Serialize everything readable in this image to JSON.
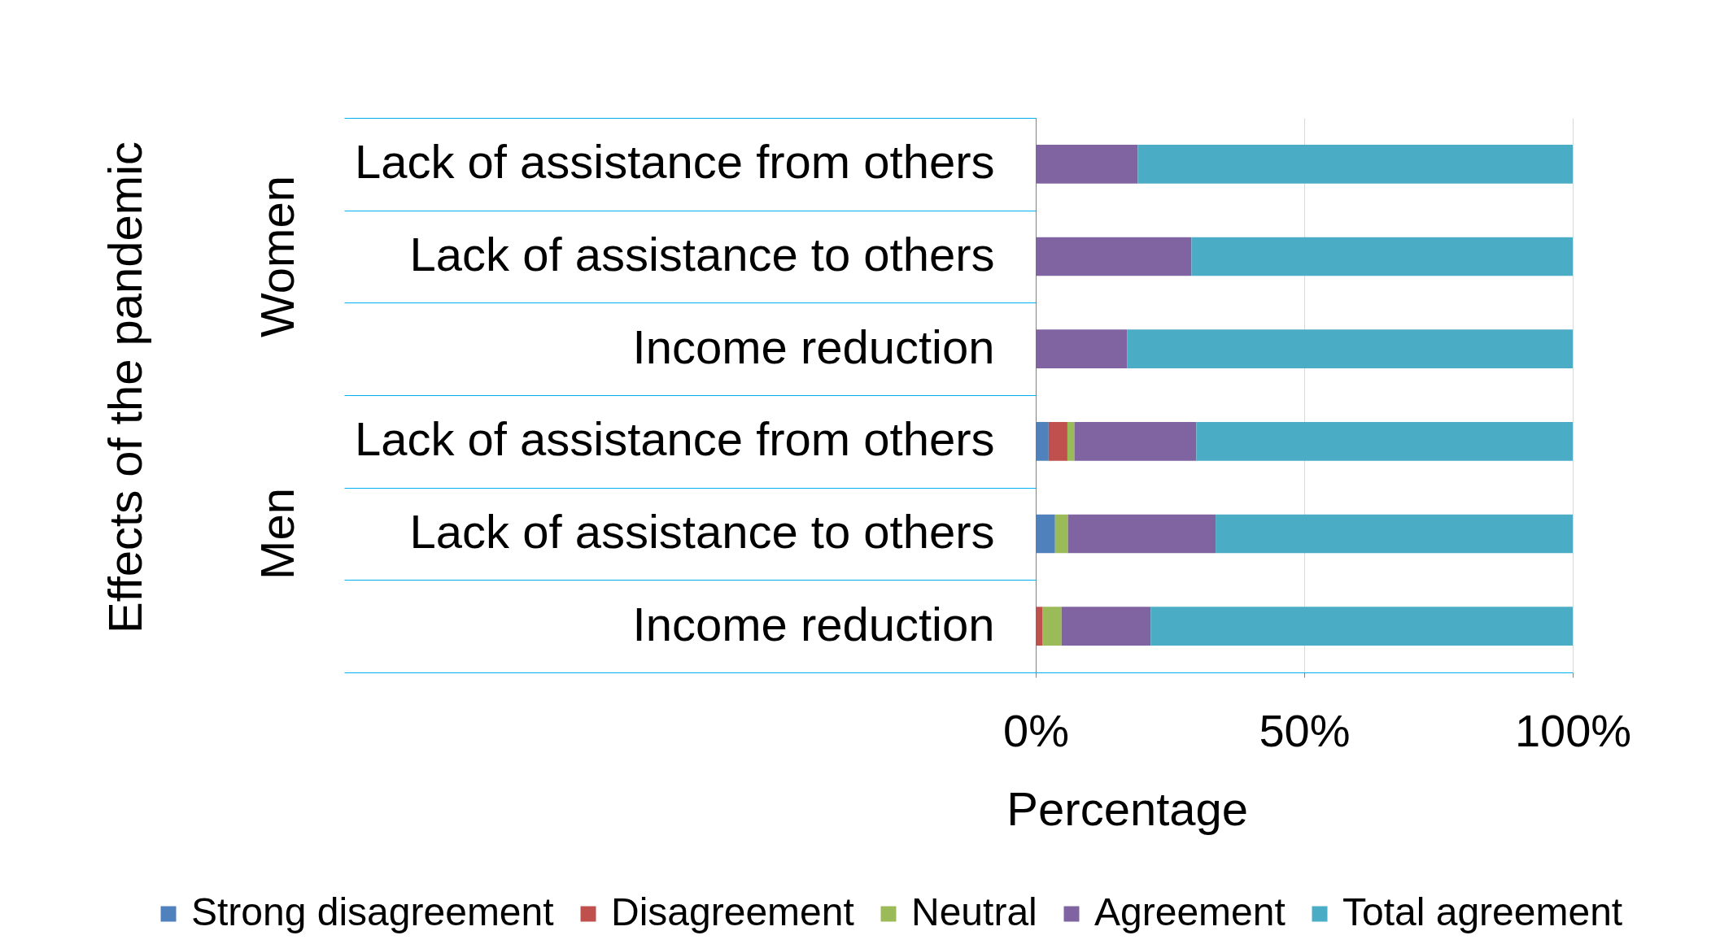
{
  "chart_data": {
    "type": "bar",
    "orientation": "horizontal",
    "stacked": true,
    "categories": [
      "Lack of assistance from others",
      "Lack of assistance to others",
      "Income reduction",
      "Lack of assistance from others",
      "Lack of assistance to others",
      "Income reduction"
    ],
    "annotations": [
      "Women",
      "Men"
    ],
    "series": [
      {
        "name": "Strong disagreement",
        "color": "#4f81bd",
        "values": [
          0,
          0,
          0,
          2.4,
          3.6,
          0
        ]
      },
      {
        "name": "Disagreement",
        "color": "#c0504d",
        "values": [
          0,
          0,
          0,
          3.5,
          0,
          1.3
        ]
      },
      {
        "name": "Neutral",
        "color": "#9bbb59",
        "values": [
          0,
          0,
          0,
          1.3,
          2.4,
          3.5
        ]
      },
      {
        "name": "Agreement",
        "color": "#8064a2",
        "values": [
          19,
          29,
          17,
          22.7,
          27.5,
          16.6
        ]
      },
      {
        "name": "Total agreement",
        "color": "#4bacc6",
        "values": [
          81,
          71,
          83,
          70.1,
          66.5,
          78.6
        ]
      }
    ],
    "xlim": [
      0,
      100
    ],
    "xticks": [
      {
        "value": 0,
        "label": "0%"
      },
      {
        "value": 50,
        "label": "50%"
      },
      {
        "value": 100,
        "label": "100%"
      }
    ],
    "xlabel": "Percentage",
    "ylabel": "Effects of the pandemic",
    "grid": "x",
    "legend": "bottom"
  }
}
